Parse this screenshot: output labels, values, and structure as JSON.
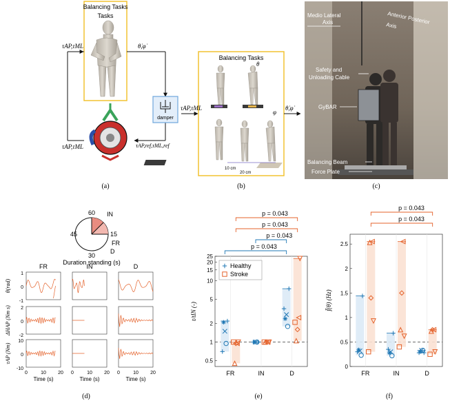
{
  "figure": {
    "panels": {
      "a": {
        "label": "(a)",
        "box_title": "Balancing Tasks",
        "symbols": {
          "tau_in": "τAP,τML",
          "theta_phi_dot": "θ̇,φ̇",
          "tau_out": "τAP,τML",
          "tau_ref": "τAP,ref,τML,ref",
          "damper": "damper"
        }
      },
      "b": {
        "label": "(b)",
        "box_title": "Balancing Tasks",
        "symbols": {
          "tau_in": "τAP,τML",
          "theta": "θ",
          "phi": "φ",
          "theta_phi_dot": "θ̇,φ̇",
          "dim1": "10 cm",
          "dim2": "20 cm"
        }
      },
      "c": {
        "label": "(c)",
        "annotations": {
          "ml_axis": "Medio Lateral Axis",
          "ap_axis": "Anterior Posterior Axis",
          "cable": "Safety and Unloading Cable",
          "gybar": "GyBAR",
          "beam": "Balancing Beam",
          "plate": "Force Plate"
        }
      },
      "d": {
        "label": "(d)",
        "clock": {
          "ticks": [
            "60",
            "15",
            "30",
            "45"
          ],
          "legend": [
            "IN",
            "FR",
            "D"
          ],
          "xlabel": "Duration standing (s)"
        },
        "columns": [
          "FR",
          "IN",
          "D"
        ],
        "row_labels": [
          "θ(rad)",
          "ΔHAP (Nm s)",
          "τAP (Nm)"
        ],
        "y_ticks": [
          [
            "1",
            "0",
            "-1"
          ],
          [
            "2",
            "0",
            "-2"
          ],
          [
            "10",
            "0",
            "-10"
          ]
        ],
        "x_ticks": [
          "0",
          "10",
          "20"
        ],
        "xlabel": "Time (s)"
      },
      "e": {
        "label": "(e)",
        "ylabel": "t/tIN (-)",
        "legend": [
          "Healthy",
          "Stroke"
        ],
        "significance": [
          "p = 0.043",
          "p = 0.043",
          "p = 0.043",
          "p = 0.043"
        ]
      },
      "f": {
        "label": "(f)",
        "ylabel": "f̄(θ) (Hz)",
        "significance": [
          "p = 0.043",
          "p = 0.043"
        ]
      }
    },
    "colors": {
      "healthy": "#1f77b4",
      "stroke": "#e4612a",
      "healthy_band": "#dbeaf6",
      "stroke_band": "#fbe1d3",
      "box_yellow": "#f2c230",
      "box_blue": "#6ea6dc",
      "clock_fill": "#f2b8b0"
    }
  },
  "chart_data": [
    {
      "type": "scatter",
      "title": "",
      "xlabel": "",
      "ylabel": "t/tIN (-)",
      "categories": [
        "FR",
        "IN",
        "D"
      ],
      "yscale": "log",
      "ylim": [
        0.4,
        25
      ],
      "yticks": [
        0.5,
        1,
        2,
        5,
        10,
        15,
        20,
        25
      ],
      "reference_line": 1,
      "series": [
        {
          "name": "Healthy",
          "color": "#1f77b4",
          "markers": [
            "+",
            "*",
            "x",
            "o",
            "+"
          ],
          "values": [
            [
              0.7,
              2.1,
              1.5,
              0.95,
              2.2
            ],
            [
              1.0,
              1.0,
              1.0,
              1.0,
              1.0
            ],
            [
              3.5,
              2.4,
              2.8,
              1.8,
              7.4
            ]
          ]
        },
        {
          "name": "Stroke",
          "color": "#e4612a",
          "markers": [
            "square",
            "triangle-up",
            "diamond",
            "triangle-left",
            "triangle-down"
          ],
          "values": [
            [
              1.0,
              0.45,
              0.95,
              0.95,
              1.0
            ],
            [
              1.0,
              1.0,
              1.0,
              1.0,
              1.0
            ],
            [
              2.1,
              1.05,
              1.6,
              2.5,
              23.0
            ]
          ]
        }
      ],
      "significance": [
        {
          "label": "p = 0.043",
          "from": "FR",
          "to": "D",
          "series": "Stroke"
        },
        {
          "label": "p = 0.043",
          "from": "FR",
          "to": "D",
          "series": "Stroke"
        },
        {
          "label": "p = 0.043",
          "from": "IN",
          "to": "D",
          "series": "Healthy"
        },
        {
          "label": "p = 0.043",
          "from": "FR",
          "to": "D",
          "series": "Healthy"
        }
      ]
    },
    {
      "type": "scatter",
      "title": "",
      "xlabel": "",
      "ylabel": "f̄(θ) (Hz)",
      "categories": [
        "FR",
        "IN",
        "D"
      ],
      "ylim": [
        0,
        2.7
      ],
      "yticks": [
        0,
        0.5,
        1,
        1.5,
        2,
        2.5
      ],
      "reference_line": 0.5,
      "series": [
        {
          "name": "Healthy",
          "color": "#1f77b4",
          "markers": [
            "+",
            "*",
            "x",
            "o",
            "+"
          ],
          "values": [
            [
              0.3,
              0.34,
              0.32,
              0.23,
              1.44
            ],
            [
              0.35,
              0.28,
              0.3,
              0.22,
              0.68
            ],
            [
              0.28,
              0.3,
              0.33,
              0.33,
              0.28
            ]
          ]
        },
        {
          "name": "Stroke",
          "color": "#e4612a",
          "markers": [
            "square",
            "triangle-up",
            "diamond",
            "triangle-left",
            "triangle-down"
          ],
          "values": [
            [
              0.3,
              2.53,
              1.4,
              2.55,
              0.93
            ],
            [
              0.4,
              0.75,
              1.5,
              2.55,
              0.62
            ],
            [
              0.25,
              0.72,
              0.75,
              0.75,
              0.3
            ]
          ]
        }
      ],
      "significance": [
        {
          "label": "p = 0.043",
          "from": "FR",
          "to": "D",
          "series": "Stroke"
        },
        {
          "label": "p = 0.043",
          "from": "FR",
          "to": "D",
          "series": "Stroke"
        }
      ]
    }
  ]
}
